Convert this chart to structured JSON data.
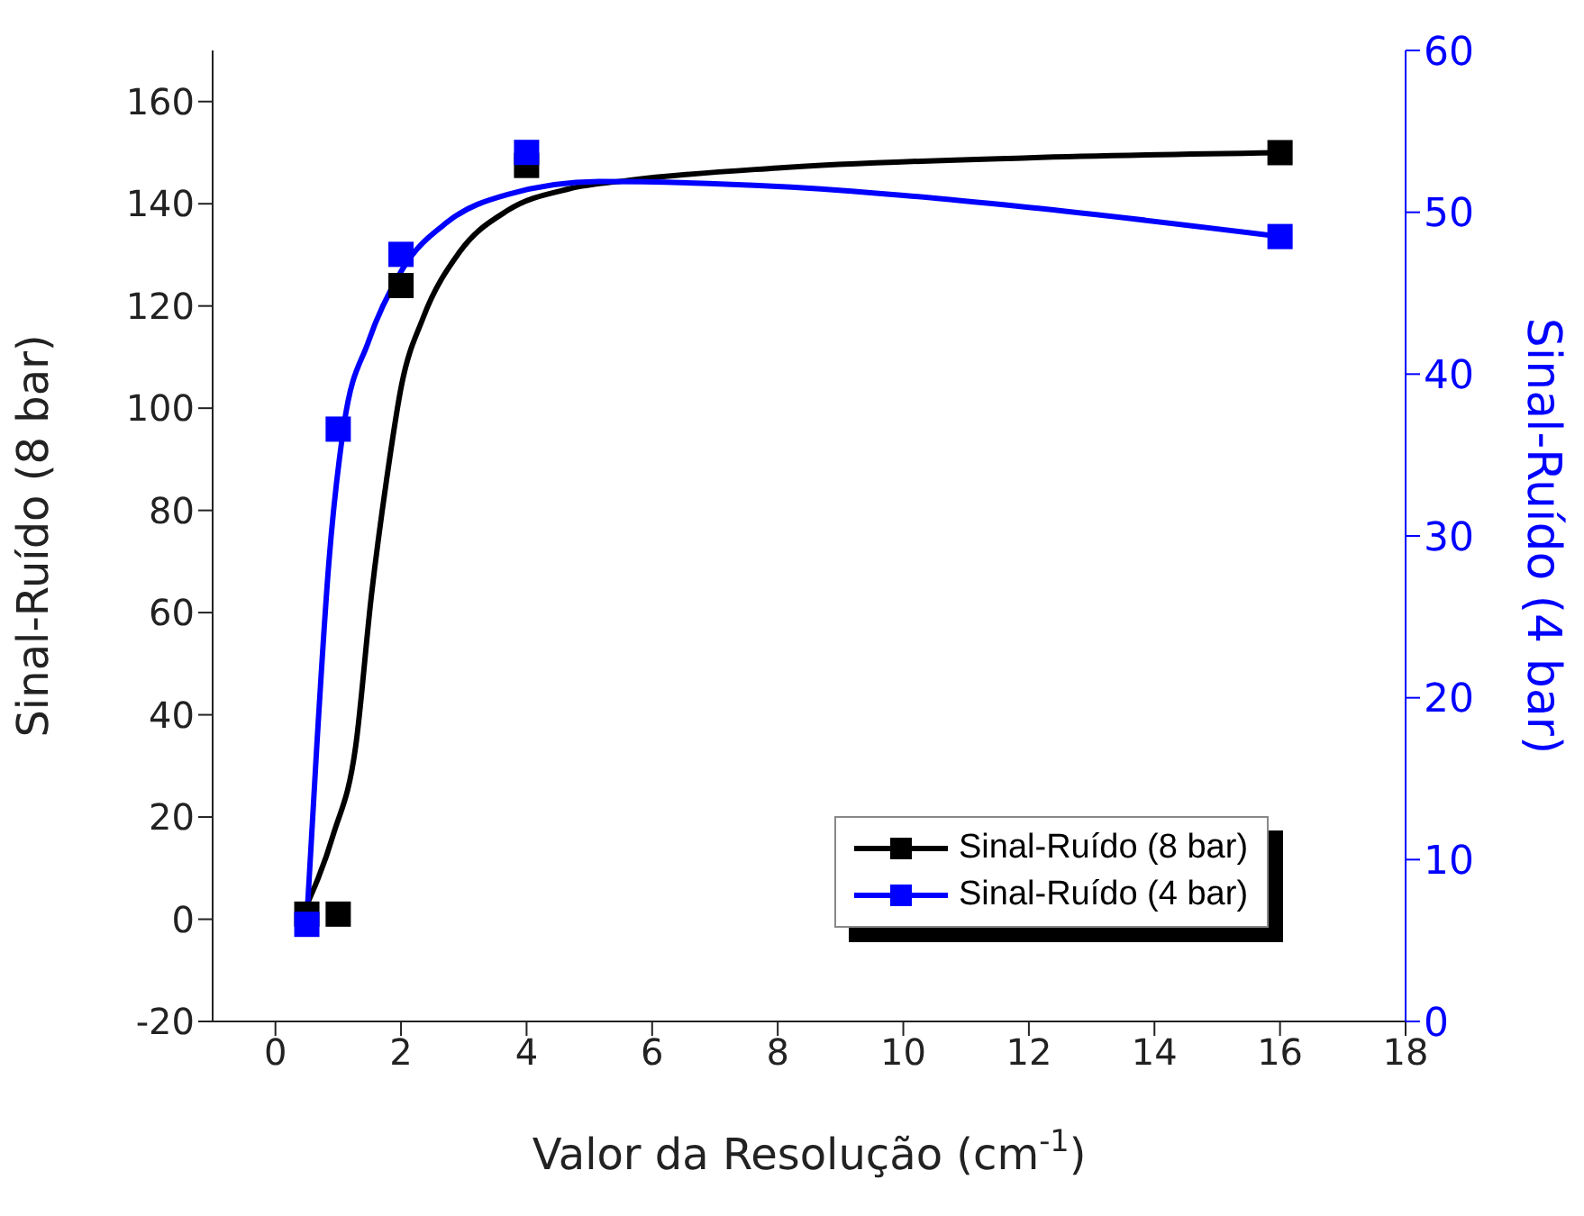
{
  "chart_data": {
    "type": "scatter",
    "xlabel": "Valor da Resolução (cm$^{-1}$)",
    "ylabel": "Sinal-Ruído (8 bar)",
    "y2label": "Sinal-Ruído (4 bar)",
    "xlim": [
      -1,
      18
    ],
    "xticks": [
      0,
      2,
      4,
      6,
      8,
      10,
      12,
      14,
      16,
      18
    ],
    "ylim": [
      -20,
      170
    ],
    "yticks": [
      -20,
      0,
      20,
      40,
      60,
      80,
      100,
      120,
      140,
      160
    ],
    "y2lim": [
      0,
      60
    ],
    "y2ticks": [
      0,
      10,
      20,
      30,
      40,
      50,
      60
    ],
    "legend": "bottom right",
    "grid": false,
    "series": [
      {
        "name": "Sinal-Ruído (8 bar)",
        "marker": "square",
        "color": "#000000",
        "x": [
          0.5,
          1,
          2,
          4,
          16
        ],
        "values": [
          1,
          1,
          124,
          147.5,
          150
        ]
      },
      {
        "name": "Sinal-Ruído (4 bar)",
        "marker": "square",
        "color": "#0000ff",
        "axis": "y2",
        "x": [
          0.5,
          1,
          2,
          4,
          16
        ],
        "values": [
          6,
          36.6,
          47.4,
          53.7,
          48.5
        ]
      },
      {
        "type": "line",
        "marker": "none",
        "color": "#000000",
        "x": [
          0.44,
          0.92,
          1.28,
          1.53,
          1.77,
          2.01,
          2.35,
          2.93,
          3.7,
          4.67,
          5.63,
          8,
          12,
          16
        ],
        "values": [
          1.2,
          16.5,
          34,
          63.5,
          86,
          104.6,
          117.6,
          130.5,
          138.7,
          142.9,
          144.6,
          147,
          149,
          150
        ]
      },
      {
        "type": "line",
        "marker": "none",
        "color": "#0000ff",
        "axis": "y2",
        "x": [
          0.5,
          0.66,
          0.85,
          1.09,
          1.48,
          2.01,
          2.74,
          3.7,
          5.15,
          8,
          12,
          16
        ],
        "values": [
          6.3,
          17.1,
          28.3,
          36.8,
          42,
          46.4,
          49.4,
          51.1,
          51.9,
          51.6,
          50.3,
          48.5
        ]
      }
    ]
  }
}
